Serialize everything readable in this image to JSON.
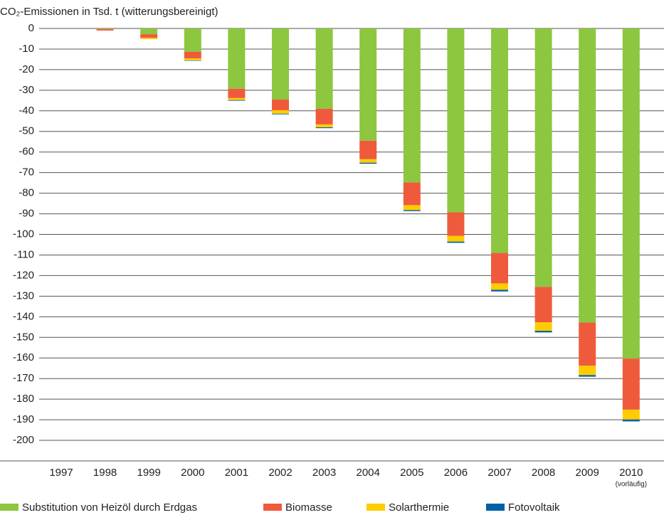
{
  "chart_data": {
    "type": "stacked-bar",
    "title": "CO₂-Emissionen in Tsd. t (witterungsbereinigt)",
    "categories": [
      "1997",
      "1998",
      "1999",
      "2000",
      "2001",
      "2002",
      "2003",
      "2004",
      "2005",
      "2006",
      "2007",
      "2008",
      "2009",
      "2010"
    ],
    "annotations": [
      {
        "category": 13,
        "text": "(vorläufig)"
      }
    ],
    "series": [
      {
        "name": "Substitution von Heizöl durch Erdgas",
        "color": "#8dc63f",
        "values": [
          0,
          -0.3,
          -2.8,
          -11.4,
          -29.3,
          -34.5,
          -39,
          -54.5,
          -74.8,
          -89.3,
          -109,
          -125.5,
          -142.8,
          -160.3
        ]
      },
      {
        "name": "Biomasse",
        "color": "#f05a3c",
        "values": [
          0,
          -0.7,
          -1.7,
          -3.1,
          -4.5,
          -5.2,
          -7.6,
          -9,
          -11,
          -11.4,
          -14.8,
          -17.2,
          -21,
          -24.8
        ]
      },
      {
        "name": "Solarthermie",
        "color": "#ffcc00",
        "values": [
          0,
          0,
          -0.7,
          -1,
          -1,
          -1.7,
          -1.4,
          -1.7,
          -2.4,
          -2.8,
          -3.1,
          -4.1,
          -4.5,
          -4.8
        ]
      },
      {
        "name": "Fotovoltaik",
        "color": "#0060a8",
        "values": [
          0,
          0,
          0,
          -0.2,
          -0.3,
          -0.3,
          -0.4,
          -0.5,
          -0.5,
          -0.6,
          -0.8,
          -0.8,
          -0.8,
          -0.9
        ]
      }
    ],
    "ylim": [
      -210,
      0
    ],
    "yticks": [
      0,
      -10,
      -20,
      -30,
      -40,
      -50,
      -60,
      -70,
      -80,
      -90,
      -100,
      -110,
      -120,
      -130,
      -140,
      -150,
      -160,
      -170,
      -180,
      -190,
      -200
    ],
    "grid": true,
    "legend": "bottom"
  }
}
